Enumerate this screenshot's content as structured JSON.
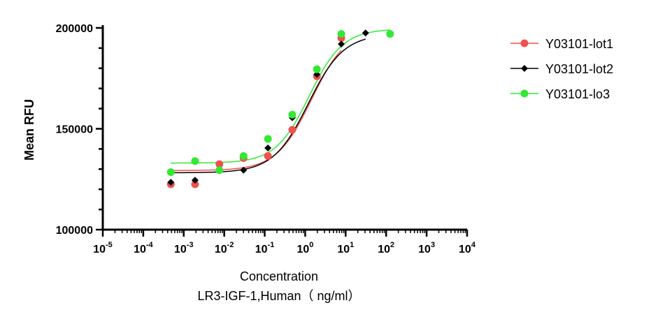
{
  "chart_data": {
    "type": "scatter",
    "title": "",
    "xlabel": "Concentration",
    "xlabel_line2": "LR3-IGF-1,Human（ ng/ml）",
    "ylabel": "Mean RFU",
    "xscale": "log10",
    "xlim_exp": [
      -5,
      4
    ],
    "ylim": [
      100000,
      200000
    ],
    "x_tick_base": "10",
    "x_tick_exponents": [
      "-5",
      "-4",
      "-3",
      "-2",
      "-1",
      "0",
      "1",
      "2",
      "3",
      "4"
    ],
    "y_ticks": [
      100000,
      150000,
      200000
    ],
    "y_tick_labels": [
      "100000",
      "150000",
      "200000"
    ],
    "legend_position": "right",
    "series": [
      {
        "name": "Y03101-lot1",
        "color": "#f0514f",
        "marker": "circle",
        "points": [
          {
            "x": 0.00048,
            "y": 122500
          },
          {
            "x": 0.0019,
            "y": 122500
          },
          {
            "x": 0.0076,
            "y": 132500
          },
          {
            "x": 0.03,
            "y": 135500
          },
          {
            "x": 0.12,
            "y": 136500
          },
          {
            "x": 0.48,
            "y": 149500
          },
          {
            "x": 1.95,
            "y": 176000
          },
          {
            "x": 7.8,
            "y": 195000
          }
        ],
        "fit": {
          "bottom": 129300,
          "top": 200000,
          "log_ec50": 0.16,
          "hill": 1.0
        }
      },
      {
        "name": "Y03101-lot2",
        "color": "#000000",
        "marker": "diamond",
        "points": [
          {
            "x": 0.00048,
            "y": 123500
          },
          {
            "x": 0.0019,
            "y": 124500
          },
          {
            "x": 0.0076,
            "y": 129500
          },
          {
            "x": 0.03,
            "y": 129500
          },
          {
            "x": 0.12,
            "y": 140500
          },
          {
            "x": 0.48,
            "y": 155500
          },
          {
            "x": 1.95,
            "y": 177000
          },
          {
            "x": 7.8,
            "y": 192000
          },
          {
            "x": 31,
            "y": 197500
          }
        ],
        "fit": {
          "bottom": 128200,
          "top": 197000,
          "log_ec50": 0.08,
          "hill": 1.0
        }
      },
      {
        "name": "Y03101-lo3",
        "color": "#33e833",
        "marker": "circle",
        "points": [
          {
            "x": 0.00048,
            "y": 128500
          },
          {
            "x": 0.0019,
            "y": 134000
          },
          {
            "x": 0.0076,
            "y": 129500
          },
          {
            "x": 0.03,
            "y": 136500
          },
          {
            "x": 0.12,
            "y": 145000
          },
          {
            "x": 0.48,
            "y": 157000
          },
          {
            "x": 1.95,
            "y": 179500
          },
          {
            "x": 7.8,
            "y": 197000
          },
          {
            "x": 125,
            "y": 197000
          }
        ],
        "fit": {
          "bottom": 133000,
          "top": 199500,
          "log_ec50": 0.1,
          "hill": 1.05
        }
      }
    ]
  }
}
